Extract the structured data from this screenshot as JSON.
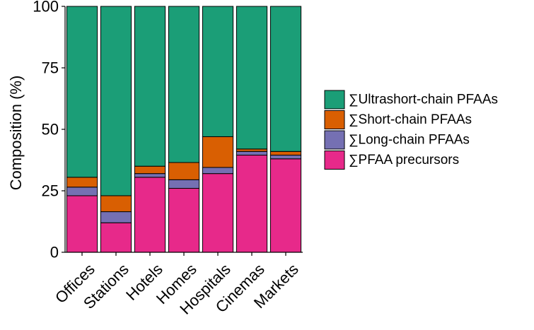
{
  "chart_data": {
    "type": "bar",
    "stacked": true,
    "categories": [
      "Offices",
      "Stations",
      "Hotels",
      "Homes",
      "Hospitals",
      "Cinemas",
      "Markets"
    ],
    "series": [
      {
        "name": "∑PFAA precursors",
        "color": "#E7298A",
        "values": [
          23,
          12,
          30.5,
          26,
          32,
          39.5,
          38
        ]
      },
      {
        "name": "∑Long-chain PFAAs",
        "color": "#7570B3",
        "values": [
          3.5,
          4.5,
          1.5,
          3.5,
          2.5,
          1.5,
          1.5
        ]
      },
      {
        "name": "∑Short-chain PFAAs",
        "color": "#D95F02",
        "values": [
          4,
          6.5,
          3,
          7,
          12.5,
          1,
          1.5
        ]
      },
      {
        "name": "∑Ultrashort-chain PFAAs",
        "color": "#1B9E77",
        "values": [
          69.5,
          77,
          65,
          63.5,
          53,
          58,
          59
        ]
      }
    ],
    "xlabel": "",
    "ylabel": "Composition (%)",
    "ylim": [
      0,
      100
    ],
    "yticks": [
      "0",
      "25",
      "50",
      "75",
      "100"
    ],
    "grid": false,
    "legend_position": "right",
    "legend_order": [
      "∑Ultrashort-chain PFAAs",
      "∑Short-chain PFAAs",
      "∑Long-chain PFAAs",
      "∑PFAA precursors"
    ]
  }
}
